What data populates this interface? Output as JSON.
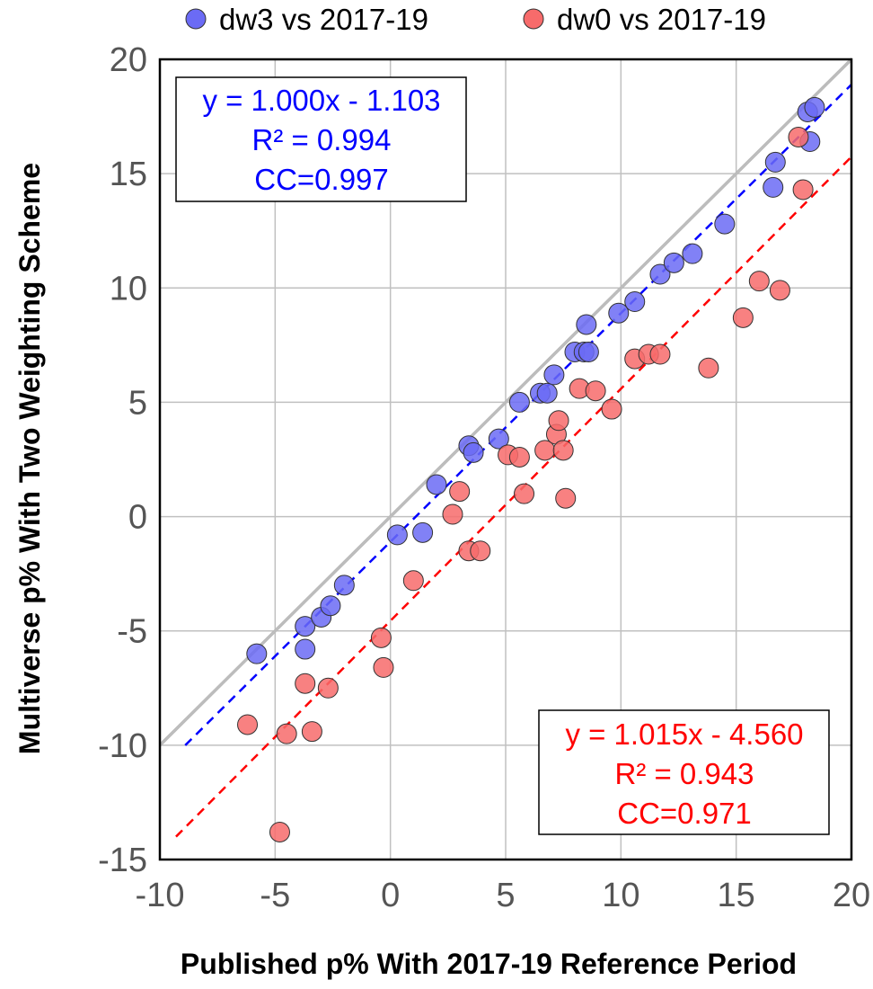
{
  "chart_data": {
    "type": "scatter",
    "xlabel": "Published p% With 2017-19 Reference Period",
    "ylabel": "Multiverse p% With Two Weighting Scheme",
    "xlim": [
      -10,
      20
    ],
    "ylim": [
      -15,
      20
    ],
    "x_ticks": [
      "-10",
      "-5",
      "0",
      "5",
      "10",
      "15",
      "20"
    ],
    "y_ticks": [
      "20",
      "15",
      "10",
      "5",
      "0",
      "-5",
      "-10",
      "-15"
    ],
    "grid": true,
    "legend_position": "top",
    "series": [
      {
        "name": "dw3 vs 2017-19",
        "color": "#6b6bf5",
        "points": [
          [
            -5.8,
            -6.0
          ],
          [
            -3.7,
            -4.8
          ],
          [
            -3.7,
            -5.8
          ],
          [
            -3.0,
            -4.4
          ],
          [
            -2.6,
            -3.9
          ],
          [
            -2.0,
            -3.0
          ],
          [
            0.3,
            -0.8
          ],
          [
            1.4,
            -0.7
          ],
          [
            2.0,
            1.4
          ],
          [
            3.4,
            3.1
          ],
          [
            3.6,
            2.8
          ],
          [
            4.7,
            3.4
          ],
          [
            5.6,
            5.0
          ],
          [
            6.5,
            5.4
          ],
          [
            6.8,
            5.4
          ],
          [
            7.1,
            6.2
          ],
          [
            8.0,
            7.2
          ],
          [
            8.4,
            7.2
          ],
          [
            8.6,
            7.2
          ],
          [
            8.5,
            8.4
          ],
          [
            9.9,
            8.9
          ],
          [
            10.6,
            9.4
          ],
          [
            11.7,
            10.6
          ],
          [
            12.3,
            11.1
          ],
          [
            13.1,
            11.5
          ],
          [
            14.5,
            12.8
          ],
          [
            16.6,
            14.4
          ],
          [
            16.7,
            15.5
          ],
          [
            18.1,
            17.7
          ],
          [
            18.4,
            17.9
          ],
          [
            18.2,
            16.4
          ]
        ]
      },
      {
        "name": "dw0 vs 2017-19",
        "color": "#f76b6b",
        "points": [
          [
            -6.2,
            -9.1
          ],
          [
            -4.8,
            -13.8
          ],
          [
            -4.5,
            -9.5
          ],
          [
            -3.7,
            -7.3
          ],
          [
            -3.4,
            -9.4
          ],
          [
            -2.7,
            -7.5
          ],
          [
            -0.4,
            -5.3
          ],
          [
            -0.3,
            -6.6
          ],
          [
            1.0,
            -2.8
          ],
          [
            2.7,
            0.1
          ],
          [
            3.0,
            1.1
          ],
          [
            3.4,
            -1.5
          ],
          [
            3.9,
            -1.5
          ],
          [
            5.1,
            2.7
          ],
          [
            5.6,
            2.6
          ],
          [
            5.8,
            1.0
          ],
          [
            6.7,
            2.9
          ],
          [
            7.2,
            3.6
          ],
          [
            7.3,
            4.2
          ],
          [
            7.5,
            2.9
          ],
          [
            7.6,
            0.8
          ],
          [
            8.2,
            5.6
          ],
          [
            8.9,
            5.5
          ],
          [
            9.6,
            4.7
          ],
          [
            10.6,
            6.9
          ],
          [
            11.2,
            7.1
          ],
          [
            11.7,
            7.1
          ],
          [
            13.8,
            6.5
          ],
          [
            15.3,
            8.7
          ],
          [
            16.0,
            10.3
          ],
          [
            16.9,
            9.9
          ],
          [
            17.7,
            16.6
          ],
          [
            17.9,
            14.3
          ]
        ]
      }
    ],
    "trendlines": [
      {
        "series": "dw3 vs 2017-19",
        "color": "#0000ff",
        "slope": 1.0,
        "intercept": -1.103,
        "x_range": [
          -8.9,
          20
        ]
      },
      {
        "series": "dw0 vs 2017-19",
        "color": "#ff0000",
        "slope": 1.015,
        "intercept": -4.56,
        "x_range": [
          -9.3,
          20
        ]
      }
    ],
    "identity_line": {
      "color": "#bbbbbb"
    },
    "annotations": {
      "blue": {
        "line1": "y = 1.000x - 1.103",
        "line2": "R² = 0.994",
        "line3": "CC=0.997",
        "color": "#0000ff"
      },
      "red": {
        "line1": "y = 1.015x - 4.560",
        "line2": "R² = 0.943",
        "line3": "CC=0.971",
        "color": "#ff0000"
      }
    }
  }
}
